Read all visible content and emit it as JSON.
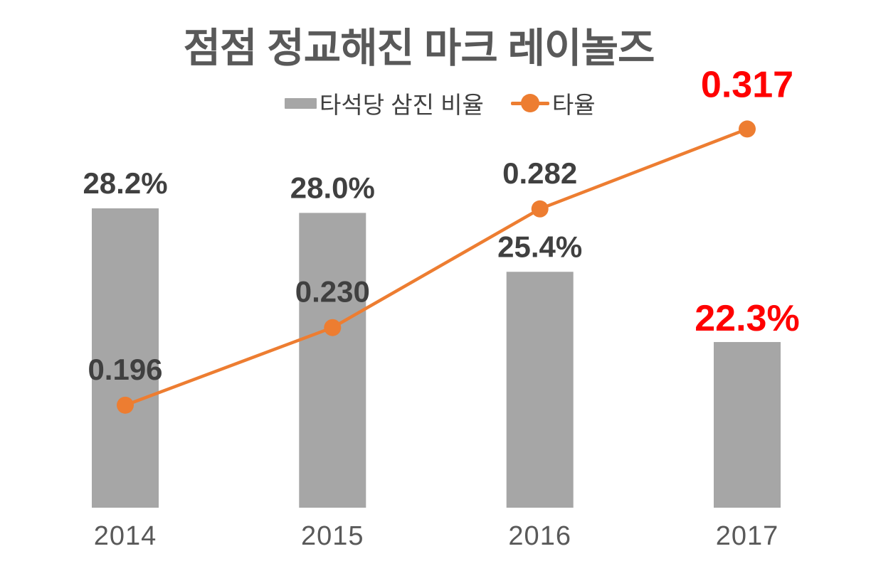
{
  "title": "점점 정교해진 마크 레이놀즈",
  "legend": [
    {
      "label": "타석당 삼진 비율",
      "marker": "bar-swatch",
      "color": "#a6a6a6"
    },
    {
      "label": "타율",
      "marker": "line-dot",
      "color": "#ed7d31"
    }
  ],
  "colors": {
    "bar": "#a6a6a6",
    "line": "#ed7d31",
    "label_default": "#404040",
    "label_highlight": "#ff0000",
    "axis_label": "#595959",
    "title": "#595959",
    "background": "#ffffff"
  },
  "chart_data": {
    "type": "bar",
    "subtype": "combo-bar-line",
    "title": "점점 정교해진 마크 레이놀즈",
    "categories": [
      "2014",
      "2015",
      "2016",
      "2017"
    ],
    "series": [
      {
        "name": "타석당 삼진 비율",
        "type": "bar",
        "unit": "%",
        "values": [
          28.2,
          28.0,
          25.4,
          22.3
        ],
        "labels": [
          "28.2%",
          "28.0%",
          "25.4%",
          "22.3%"
        ],
        "label_colors": [
          "#404040",
          "#404040",
          "#404040",
          "#ff0000"
        ],
        "color": "#a6a6a6"
      },
      {
        "name": "타율",
        "type": "line",
        "unit": "batting average",
        "values": [
          0.196,
          0.23,
          0.282,
          0.317
        ],
        "labels": [
          "0.196",
          "0.230",
          "0.282",
          "0.317"
        ],
        "label_colors": [
          "#404040",
          "#404040",
          "#404040",
          "#ff0000"
        ],
        "color": "#ed7d31"
      }
    ],
    "highlighted_category": "2017",
    "legend_position": "top-center",
    "grid": false,
    "value_axes_visible": false,
    "data_labels_visible": true,
    "xlabel": "",
    "ylabel": ""
  }
}
